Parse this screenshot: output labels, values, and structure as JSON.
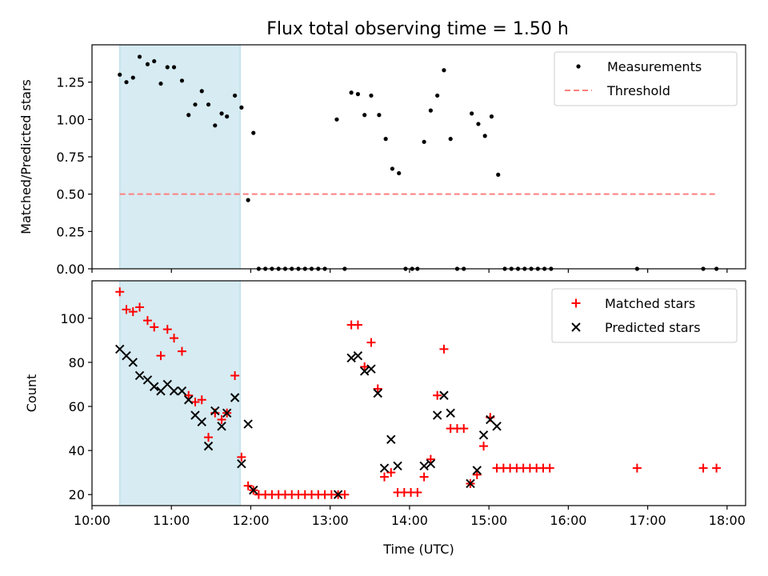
{
  "title": "Flux total observing time = 1.50 h",
  "colors": {
    "highlight": "#add8e6",
    "threshold": "#ff7f7f",
    "matched": "#ff0000",
    "predicted": "#000000",
    "measurement": "#000000"
  },
  "chart_data": [
    {
      "type": "scatter",
      "ylabel": "Matched/Predicted stars",
      "xlabel": "",
      "xlim": [
        "10:00",
        "18:14"
      ],
      "ylim": [
        0,
        1.5
      ],
      "yticks": [
        "0.00",
        "0.25",
        "0.50",
        "0.75",
        "1.00",
        "1.25"
      ],
      "legend_position": "top-right",
      "highlight_span": [
        "10:21",
        "11:52"
      ],
      "series": [
        {
          "name": "Measurements",
          "marker": "dot",
          "points": [
            [
              "10:21",
              1.3
            ],
            [
              "10:26",
              1.25
            ],
            [
              "10:31",
              1.28
            ],
            [
              "10:36",
              1.42
            ],
            [
              "10:42",
              1.37
            ],
            [
              "10:47",
              1.39
            ],
            [
              "10:52",
              1.24
            ],
            [
              "10:57",
              1.35
            ],
            [
              "11:02",
              1.35
            ],
            [
              "11:08",
              1.26
            ],
            [
              "11:13",
              1.03
            ],
            [
              "11:18",
              1.1
            ],
            [
              "11:23",
              1.19
            ],
            [
              "11:28",
              1.1
            ],
            [
              "11:33",
              0.96
            ],
            [
              "11:38",
              1.04
            ],
            [
              "11:42",
              1.02
            ],
            [
              "11:48",
              1.16
            ],
            [
              "11:53",
              1.08
            ],
            [
              "11:58",
              0.46
            ],
            [
              "12:02",
              0.91
            ],
            [
              "12:06",
              0.0
            ],
            [
              "12:11",
              0.0
            ],
            [
              "12:16",
              0.0
            ],
            [
              "12:21",
              0.0
            ],
            [
              "12:26",
              0.0
            ],
            [
              "12:31",
              0.0
            ],
            [
              "12:36",
              0.0
            ],
            [
              "12:41",
              0.0
            ],
            [
              "12:46",
              0.0
            ],
            [
              "12:51",
              0.0
            ],
            [
              "12:56",
              0.0
            ],
            [
              "13:05",
              1.0
            ],
            [
              "13:11",
              0.0
            ],
            [
              "13:16",
              1.18
            ],
            [
              "13:21",
              1.17
            ],
            [
              "13:26",
              1.03
            ],
            [
              "13:31",
              1.16
            ],
            [
              "13:37",
              1.03
            ],
            [
              "13:42",
              0.87
            ],
            [
              "13:47",
              0.67
            ],
            [
              "13:52",
              0.64
            ],
            [
              "13:57",
              0.0
            ],
            [
              "14:02",
              0.0
            ],
            [
              "14:06",
              0.0
            ],
            [
              "14:11",
              0.85
            ],
            [
              "14:16",
              1.06
            ],
            [
              "14:21",
              1.16
            ],
            [
              "14:26",
              1.33
            ],
            [
              "14:31",
              0.87
            ],
            [
              "14:36",
              0.0
            ],
            [
              "14:41",
              0.0
            ],
            [
              "14:47",
              1.04
            ],
            [
              "14:52",
              0.97
            ],
            [
              "14:57",
              0.89
            ],
            [
              "15:02",
              1.02
            ],
            [
              "15:07",
              0.63
            ],
            [
              "15:12",
              0.0
            ],
            [
              "15:17",
              0.0
            ],
            [
              "15:22",
              0.0
            ],
            [
              "15:27",
              0.0
            ],
            [
              "15:32",
              0.0
            ],
            [
              "15:37",
              0.0
            ],
            [
              "15:42",
              0.0
            ],
            [
              "15:47",
              0.0
            ],
            [
              "16:52",
              0.0
            ],
            [
              "17:42",
              0.0
            ],
            [
              "17:52",
              0.0
            ]
          ]
        },
        {
          "name": "Threshold",
          "style": "dashed",
          "points": [
            [
              "10:21",
              0.5
            ],
            [
              "17:52",
              0.5
            ]
          ]
        }
      ]
    },
    {
      "type": "scatter",
      "xlabel": "Time (UTC)",
      "ylabel": "Count",
      "xlim": [
        "10:00",
        "18:14"
      ],
      "ylim": [
        15,
        117
      ],
      "xticks": [
        "10:00",
        "11:00",
        "12:00",
        "13:00",
        "14:00",
        "15:00",
        "16:00",
        "17:00",
        "18:00"
      ],
      "yticks": [
        "20",
        "40",
        "60",
        "80",
        "100"
      ],
      "legend_position": "top-right",
      "highlight_span": [
        "10:21",
        "11:52"
      ],
      "series": [
        {
          "name": "Matched stars",
          "marker": "plus",
          "points": [
            [
              "10:21",
              112
            ],
            [
              "10:26",
              104
            ],
            [
              "10:31",
              103
            ],
            [
              "10:36",
              105
            ],
            [
              "10:42",
              99
            ],
            [
              "10:47",
              96
            ],
            [
              "10:52",
              83
            ],
            [
              "10:57",
              95
            ],
            [
              "11:02",
              91
            ],
            [
              "11:08",
              85
            ],
            [
              "11:13",
              65
            ],
            [
              "11:18",
              62
            ],
            [
              "11:23",
              63
            ],
            [
              "11:28",
              46
            ],
            [
              "11:33",
              57
            ],
            [
              "11:38",
              54
            ],
            [
              "11:42",
              57
            ],
            [
              "11:48",
              74
            ],
            [
              "11:53",
              37
            ],
            [
              "11:58",
              24
            ],
            [
              "12:02",
              22
            ],
            [
              "12:06",
              20
            ],
            [
              "12:11",
              20
            ],
            [
              "12:16",
              20
            ],
            [
              "12:21",
              20
            ],
            [
              "12:26",
              20
            ],
            [
              "12:31",
              20
            ],
            [
              "12:36",
              20
            ],
            [
              "12:41",
              20
            ],
            [
              "12:46",
              20
            ],
            [
              "12:51",
              20
            ],
            [
              "12:56",
              20
            ],
            [
              "13:01",
              20
            ],
            [
              "13:06",
              20
            ],
            [
              "13:11",
              20
            ],
            [
              "13:16",
              97
            ],
            [
              "13:21",
              97
            ],
            [
              "13:26",
              78
            ],
            [
              "13:31",
              89
            ],
            [
              "13:36",
              68
            ],
            [
              "13:41",
              28
            ],
            [
              "13:46",
              30
            ],
            [
              "13:51",
              21
            ],
            [
              "13:56",
              21
            ],
            [
              "14:01",
              21
            ],
            [
              "14:06",
              21
            ],
            [
              "14:11",
              28
            ],
            [
              "14:16",
              36
            ],
            [
              "14:21",
              65
            ],
            [
              "14:26",
              86
            ],
            [
              "14:31",
              50
            ],
            [
              "14:36",
              50
            ],
            [
              "14:41",
              50
            ],
            [
              "14:46",
              25
            ],
            [
              "14:51",
              29
            ],
            [
              "14:56",
              42
            ],
            [
              "15:01",
              55
            ],
            [
              "15:06",
              32
            ],
            [
              "15:11",
              32
            ],
            [
              "15:16",
              32
            ],
            [
              "15:21",
              32
            ],
            [
              "15:26",
              32
            ],
            [
              "15:31",
              32
            ],
            [
              "15:36",
              32
            ],
            [
              "15:41",
              32
            ],
            [
              "15:46",
              32
            ],
            [
              "16:52",
              32
            ],
            [
              "17:42",
              32
            ],
            [
              "17:52",
              32
            ]
          ]
        },
        {
          "name": "Predicted stars",
          "marker": "x",
          "points": [
            [
              "10:21",
              86
            ],
            [
              "10:26",
              83
            ],
            [
              "10:31",
              80
            ],
            [
              "10:36",
              74
            ],
            [
              "10:42",
              72
            ],
            [
              "10:47",
              69
            ],
            [
              "10:52",
              67
            ],
            [
              "10:57",
              70
            ],
            [
              "11:02",
              67
            ],
            [
              "11:08",
              67
            ],
            [
              "11:13",
              63
            ],
            [
              "11:18",
              56
            ],
            [
              "11:23",
              53
            ],
            [
              "11:28",
              42
            ],
            [
              "11:33",
              58
            ],
            [
              "11:38",
              51
            ],
            [
              "11:42",
              57
            ],
            [
              "11:48",
              64
            ],
            [
              "11:53",
              34
            ],
            [
              "11:58",
              52
            ],
            [
              "12:02",
              22
            ],
            [
              "13:06",
              20
            ],
            [
              "13:16",
              82
            ],
            [
              "13:21",
              83
            ],
            [
              "13:26",
              76
            ],
            [
              "13:31",
              77
            ],
            [
              "13:36",
              66
            ],
            [
              "13:41",
              32
            ],
            [
              "13:46",
              45
            ],
            [
              "13:51",
              33
            ],
            [
              "14:11",
              33
            ],
            [
              "14:16",
              34
            ],
            [
              "14:21",
              56
            ],
            [
              "14:26",
              65
            ],
            [
              "14:31",
              57
            ],
            [
              "14:46",
              25
            ],
            [
              "14:51",
              31
            ],
            [
              "14:56",
              47
            ],
            [
              "15:01",
              54
            ],
            [
              "15:06",
              51
            ]
          ]
        }
      ]
    }
  ]
}
